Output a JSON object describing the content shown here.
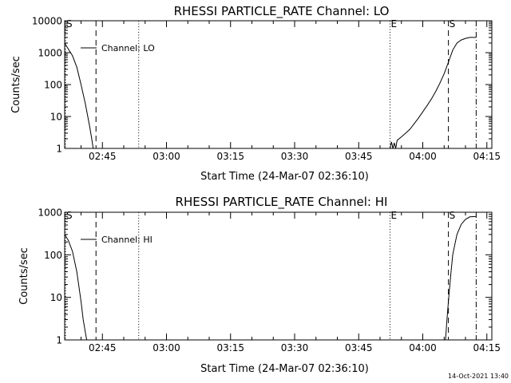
{
  "footer_timestamp": "14-Oct-2021 13:40",
  "chart_data": [
    {
      "type": "line",
      "title": "RHESSI PARTICLE_RATE Channel: LO",
      "xlabel": "Start Time (24-Mar-07 02:36:10)",
      "ylabel": "Counts/sec",
      "y_scale": "log",
      "ylim": [
        1,
        10000
      ],
      "xlim": [
        "02:36:10",
        "04:16:10"
      ],
      "x_ticks": [
        "02:45",
        "03:00",
        "03:15",
        "03:30",
        "03:45",
        "04:00",
        "04:15"
      ],
      "y_ticks": [
        "1",
        "10",
        "100",
        "1000",
        "10000"
      ],
      "legend": {
        "label": "Channel: LO",
        "placement": "top-left"
      },
      "markers": [
        {
          "label": "S",
          "time": "02:36:10",
          "style": "dotted"
        },
        {
          "label": "",
          "time": "02:43:30",
          "style": "dashed"
        },
        {
          "label": "",
          "time": "02:53:30",
          "style": "dotted"
        },
        {
          "label": "E",
          "time": "03:52:20",
          "style": "dotted"
        },
        {
          "label": "S",
          "time": "04:06:00",
          "style": "dashed"
        },
        {
          "label": "",
          "time": "04:12:30",
          "style": "dash-dot"
        }
      ],
      "series": [
        {
          "segments": [
            {
              "x": [
                "02:36:10",
                "02:37:00",
                "02:38:00",
                "02:39:00",
                "02:40:00",
                "02:41:00",
                "02:42:00",
                "02:42:30",
                "02:42:50"
              ],
              "y": [
                2000,
                1300,
                800,
                350,
                100,
                25,
                5,
                2,
                1
              ]
            },
            {
              "x": [
                "03:52:20",
                "03:52:40",
                "03:53:00",
                "03:53:20",
                "03:53:40",
                "03:54:00",
                "03:55:00",
                "03:56:00",
                "03:57:00",
                "03:58:00",
                "03:59:00",
                "04:00:00",
                "04:01:00",
                "04:02:00",
                "04:03:00",
                "04:04:00",
                "04:05:00",
                "04:06:00",
                "04:07:00",
                "04:08:00",
                "04:09:00",
                "04:10:00",
                "04:11:00",
                "04:12:30"
              ],
              "y": [
                1,
                1.6,
                1,
                1.5,
                1,
                1.8,
                2.3,
                3,
                4,
                6,
                9,
                14,
                22,
                35,
                60,
                110,
                220,
                500,
                1200,
                2000,
                2500,
                2800,
                3000,
                3000
              ]
            }
          ]
        }
      ]
    },
    {
      "type": "line",
      "title": "RHESSI PARTICLE_RATE Channel: HI",
      "xlabel": "Start Time (24-Mar-07 02:36:10)",
      "ylabel": "Counts/sec",
      "y_scale": "log",
      "ylim": [
        1,
        1000
      ],
      "xlim": [
        "02:36:10",
        "04:16:10"
      ],
      "x_ticks": [
        "02:45",
        "03:00",
        "03:15",
        "03:30",
        "03:45",
        "04:00",
        "04:15"
      ],
      "y_ticks": [
        "1",
        "10",
        "100",
        "1000"
      ],
      "legend": {
        "label": "Channel: HI",
        "placement": "top-left"
      },
      "markers": [
        {
          "label": "S",
          "time": "02:36:10",
          "style": "dotted"
        },
        {
          "label": "",
          "time": "02:43:30",
          "style": "dashed"
        },
        {
          "label": "",
          "time": "02:53:30",
          "style": "dotted"
        },
        {
          "label": "E",
          "time": "03:52:20",
          "style": "dotted"
        },
        {
          "label": "S",
          "time": "04:06:00",
          "style": "dashed"
        },
        {
          "label": "",
          "time": "04:12:30",
          "style": "dash-dot"
        }
      ],
      "series": [
        {
          "segments": [
            {
              "x": [
                "02:36:10",
                "02:37:00",
                "02:38:00",
                "02:39:00",
                "02:40:00",
                "02:40:30",
                "02:41:00",
                "02:41:20"
              ],
              "y": [
                300,
                220,
                120,
                40,
                8,
                3,
                1.5,
                1
              ]
            },
            {
              "x": [
                "04:05:20",
                "04:05:40",
                "04:06:00",
                "04:06:30",
                "04:07:00",
                "04:08:00",
                "04:09:00",
                "04:10:00",
                "04:11:00",
                "04:12:30"
              ],
              "y": [
                1,
                3,
                8,
                30,
                100,
                300,
                520,
                680,
                780,
                800
              ]
            }
          ]
        }
      ]
    }
  ]
}
